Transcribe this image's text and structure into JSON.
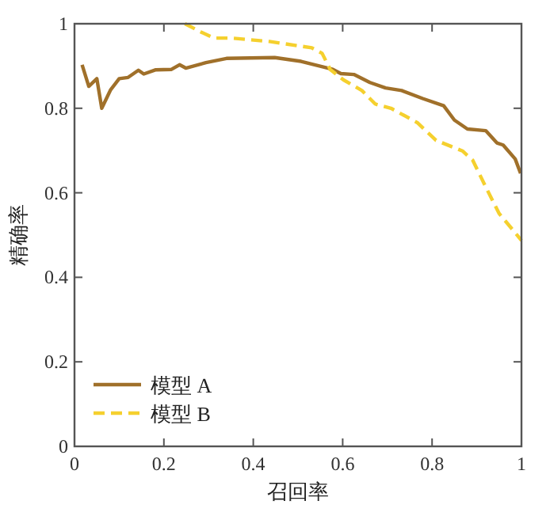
{
  "chart_data": {
    "type": "line",
    "xlabel": "召回率",
    "ylabel": "精确率",
    "xlim": [
      0,
      1
    ],
    "ylim": [
      0,
      1
    ],
    "xticks": [
      0,
      0.2,
      0.4,
      0.6,
      0.8,
      1
    ],
    "yticks": [
      0,
      0.2,
      0.4,
      0.6,
      0.8,
      1
    ],
    "grid": false,
    "legend": "bottom left",
    "series": [
      {
        "name": "模型 A",
        "color": "#a0702a",
        "line_style": "solid",
        "x": [
          0.017,
          0.032,
          0.05,
          0.061,
          0.081,
          0.1,
          0.12,
          0.143,
          0.155,
          0.182,
          0.217,
          0.235,
          0.249,
          0.294,
          0.34,
          0.448,
          0.507,
          0.578,
          0.596,
          0.625,
          0.661,
          0.696,
          0.732,
          0.779,
          0.826,
          0.85,
          0.879,
          0.92,
          0.945,
          0.959,
          0.986,
          0.998
        ],
        "values": [
          0.903,
          0.852,
          0.87,
          0.8,
          0.844,
          0.87,
          0.873,
          0.89,
          0.881,
          0.891,
          0.892,
          0.903,
          0.895,
          0.908,
          0.918,
          0.92,
          0.911,
          0.892,
          0.882,
          0.88,
          0.861,
          0.848,
          0.842,
          0.823,
          0.806,
          0.772,
          0.751,
          0.747,
          0.718,
          0.713,
          0.68,
          0.646
        ]
      },
      {
        "name": "模型 B",
        "color": "#f5d02e",
        "line_style": "dashed",
        "x": [
          0.247,
          0.282,
          0.312,
          0.353,
          0.436,
          0.531,
          0.554,
          0.572,
          0.602,
          0.643,
          0.673,
          0.708,
          0.767,
          0.809,
          0.868,
          0.891,
          0.92,
          0.95,
          0.98,
          1.0
        ],
        "values": [
          1.0,
          0.981,
          0.966,
          0.966,
          0.958,
          0.943,
          0.93,
          0.892,
          0.867,
          0.842,
          0.81,
          0.8,
          0.766,
          0.724,
          0.699,
          0.677,
          0.614,
          0.551,
          0.513,
          0.487
        ]
      }
    ]
  }
}
